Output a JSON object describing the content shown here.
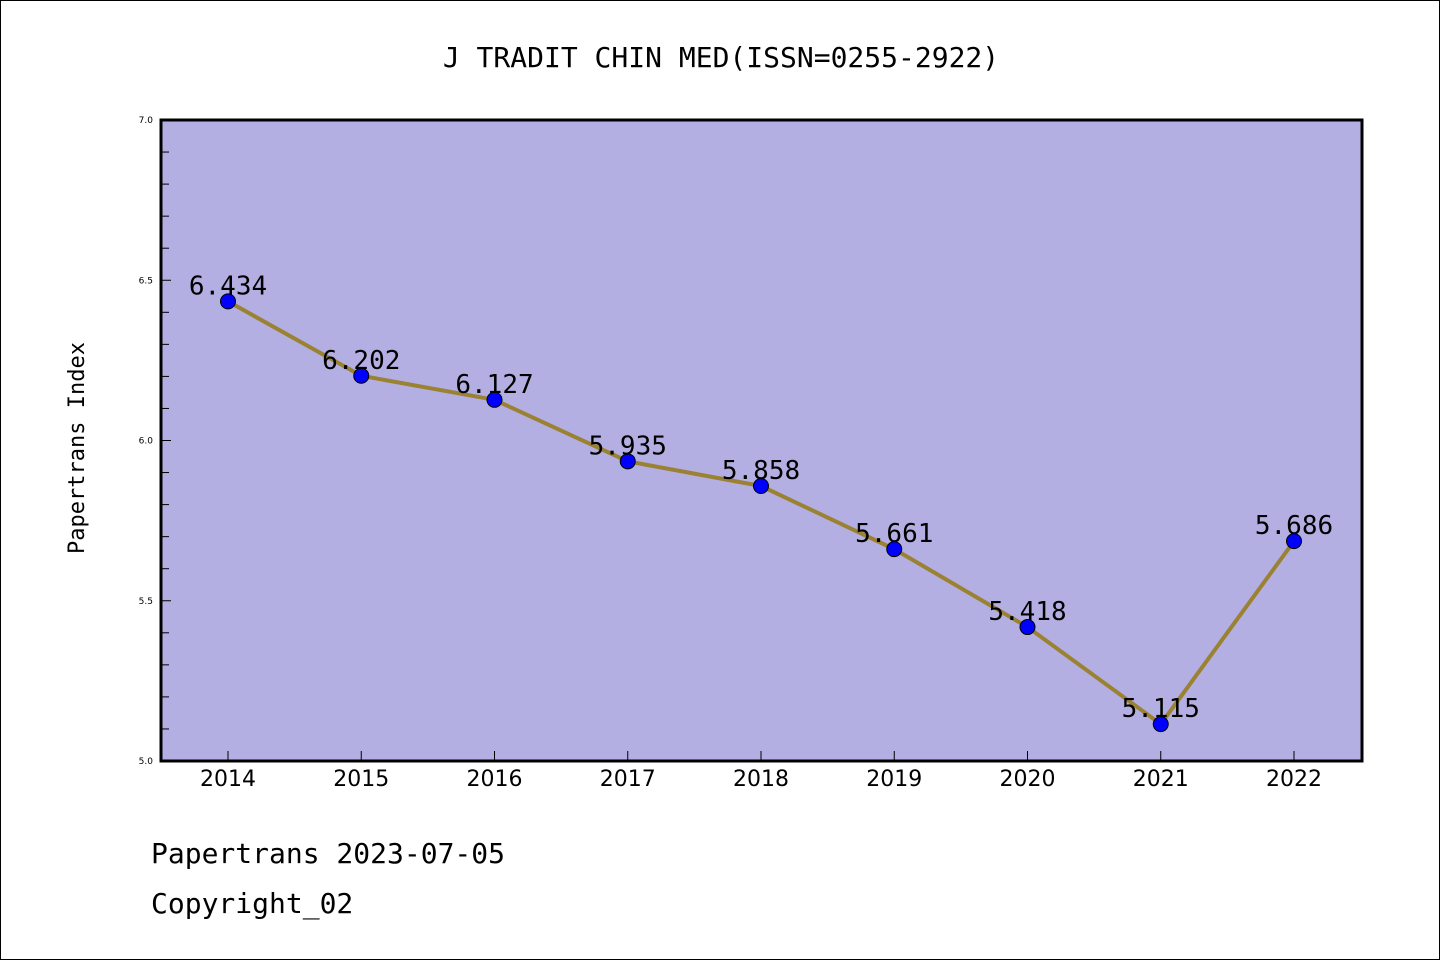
{
  "chart_data": {
    "type": "line",
    "title": "J TRADIT CHIN MED(ISSN=0255-2922)",
    "xlabel": "",
    "ylabel": "Papertrans Index",
    "categories": [
      "2014",
      "2015",
      "2016",
      "2017",
      "2018",
      "2019",
      "2020",
      "2021",
      "2022"
    ],
    "values": [
      6.434,
      6.202,
      6.127,
      5.935,
      5.858,
      5.661,
      5.418,
      5.115,
      5.686
    ],
    "data_labels": [
      "6.434",
      "6.202",
      "6.127",
      "5.935",
      "5.858",
      "5.661",
      "5.418",
      "5.115",
      "5.686"
    ],
    "ylim": [
      5.0,
      7.0
    ],
    "yticks": [
      "5.0",
      "5.5",
      "6.0",
      "6.5",
      "7.0"
    ],
    "grid": false,
    "colors": {
      "plot_background": "#b4afe3",
      "line": "#9a8232",
      "marker": "#0000ff"
    }
  },
  "footer": {
    "date_text": "Papertrans 2023-07-05",
    "copyright_text": "Copyright_02"
  }
}
